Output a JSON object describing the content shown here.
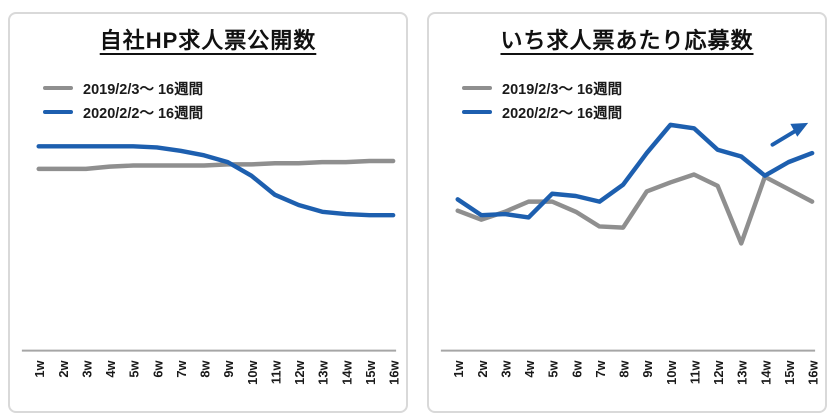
{
  "window": {
    "background": "#ffffff",
    "card_border": "#d9d9d9"
  },
  "colors": {
    "blue": "#1d5faf",
    "gray": "#8f8f8f",
    "axis": "#a6a6a6",
    "text": "#1a1a1a"
  },
  "chart_data": [
    {
      "type": "line",
      "title": "自社HP求人票公開数",
      "categories": [
        "1w",
        "2w",
        "3w",
        "4w",
        "5w",
        "6w",
        "7w",
        "8w",
        "9w",
        "10w",
        "11w",
        "12w",
        "13w",
        "14w",
        "15w",
        "16w"
      ],
      "xlabel": "",
      "ylabel": "",
      "ylim": [
        0,
        110
      ],
      "grid": false,
      "legend_position": "top-left",
      "series": [
        {
          "name": "2019/2/3～ 16週間",
          "color": "#8f8f8f",
          "values": [
            80.5,
            80.5,
            80.5,
            81.5,
            82,
            82,
            82,
            82,
            82.5,
            82.5,
            83,
            83,
            83.5,
            83.5,
            84,
            84
          ]
        },
        {
          "name": "2020/2/2～ 16週間",
          "color": "#1d5faf",
          "values": [
            90.5,
            90.5,
            90.5,
            90.5,
            90.5,
            90,
            88.5,
            86.5,
            83.5,
            77.5,
            69,
            64.5,
            61.5,
            60.5,
            60,
            60
          ]
        }
      ],
      "annotation": null
    },
    {
      "type": "line",
      "title": "いち求人票あたり応募数",
      "categories": [
        "1w",
        "2w",
        "3w",
        "4w",
        "5w",
        "6w",
        "7w",
        "8w",
        "9w",
        "10w",
        "11w",
        "12w",
        "13w",
        "14w",
        "15w",
        "16w"
      ],
      "xlabel": "",
      "ylabel": "",
      "ylim": [
        0,
        110
      ],
      "grid": false,
      "legend_position": "top-left",
      "series": [
        {
          "name": "2019/2/3～ 16週間",
          "color": "#8f8f8f",
          "values": [
            62,
            58,
            61.5,
            66,
            66,
            61.5,
            55,
            54.5,
            70.5,
            74.5,
            78,
            73,
            47.5,
            77,
            71.5,
            66
          ]
        },
        {
          "name": "2020/2/2～ 16週間",
          "color": "#1d5faf",
          "values": [
            67,
            60,
            60.5,
            59,
            69.5,
            68.5,
            66,
            73.5,
            87.5,
            100,
            98.5,
            89,
            86,
            77.5,
            83.5,
            87.5
          ]
        }
      ],
      "annotation": {
        "type": "arrow",
        "direction": "up-right",
        "color": "#1d5faf"
      }
    }
  ]
}
